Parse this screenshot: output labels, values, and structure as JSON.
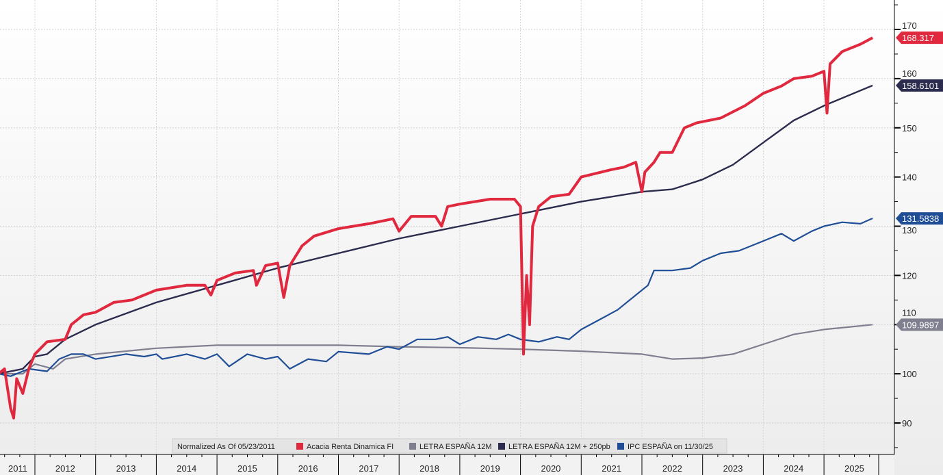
{
  "chart_data": {
    "type": "line",
    "title": "",
    "legend_header": "Normalized As Of 05/23/2011",
    "legend_position": "bottom-center",
    "ylim": [
      85,
      175
    ],
    "yticks": [
      90,
      100,
      110,
      120,
      130,
      140,
      150,
      160,
      170
    ],
    "xlim": [
      2011.38,
      2026.2
    ],
    "xticks": [
      "2011",
      "2012",
      "2013",
      "2014",
      "2015",
      "2016",
      "2017",
      "2018",
      "2019",
      "2020",
      "2021",
      "2022",
      "2023",
      "2024",
      "2025"
    ],
    "grid": true,
    "series": [
      {
        "name": "LETRA ESPAÑA 12M",
        "color": "#7f7f90",
        "width": 2.2,
        "last": "109.9897",
        "x": [
          2011.4,
          2011.8,
          2012.0,
          2012.3,
          2012.5,
          2013.0,
          2014.0,
          2015.0,
          2016.0,
          2017.0,
          2018.0,
          2019.0,
          2020.0,
          2021.0,
          2022.0,
          2022.5,
          2023.0,
          2023.5,
          2024.0,
          2024.5,
          2025.0,
          2025.8
        ],
        "y": [
          100,
          100,
          102,
          101,
          103,
          104,
          105.2,
          105.8,
          105.8,
          105.8,
          105.5,
          105.3,
          105,
          104.6,
          104,
          103,
          103.2,
          104,
          106,
          108,
          109,
          110
        ]
      },
      {
        "name": "LETRA ESPAÑA 12M + 250pb",
        "color": "#2c2c4e",
        "width": 2.4,
        "last": "158.6101",
        "x": [
          2011.4,
          2011.8,
          2012.0,
          2012.2,
          2012.5,
          2013.0,
          2014.0,
          2015.0,
          2016.0,
          2017.0,
          2018.0,
          2019.0,
          2020.0,
          2021.0,
          2022.0,
          2022.5,
          2023.0,
          2023.5,
          2024.0,
          2024.5,
          2025.0,
          2025.8
        ],
        "y": [
          100,
          101,
          103.5,
          104,
          107,
          110,
          114.5,
          118,
          121.5,
          124.5,
          127.5,
          130,
          132.5,
          135,
          137,
          137.5,
          139.5,
          142.5,
          147,
          151.5,
          154.5,
          158.6
        ]
      },
      {
        "name": "IPC ESPAÑA on 11/30/25",
        "color": "#1f4e96",
        "width": 2.2,
        "last": "131.5838",
        "x": [
          2011.4,
          2011.6,
          2011.9,
          2012.2,
          2012.4,
          2012.6,
          2012.8,
          2013.0,
          2013.5,
          2013.8,
          2014.0,
          2014.1,
          2014.5,
          2014.8,
          2015.0,
          2015.2,
          2015.5,
          2015.8,
          2016.0,
          2016.2,
          2016.5,
          2016.8,
          2017.0,
          2017.5,
          2017.8,
          2018.0,
          2018.3,
          2018.6,
          2018.8,
          2019.0,
          2019.3,
          2019.6,
          2019.8,
          2020.0,
          2020.3,
          2020.6,
          2020.8,
          2021.0,
          2021.3,
          2021.6,
          2021.9,
          2022.1,
          2022.2,
          2022.5,
          2022.8,
          2023.0,
          2023.3,
          2023.6,
          2024.0,
          2024.3,
          2024.5,
          2024.8,
          2025.0,
          2025.3,
          2025.6,
          2025.8
        ],
        "y": [
          100,
          99.5,
          101,
          100.5,
          103,
          104,
          104,
          103,
          104,
          103.5,
          104,
          103,
          104,
          103,
          104,
          101.5,
          104,
          103,
          103.5,
          101,
          103,
          102.5,
          104.5,
          104,
          105.5,
          105,
          107,
          107,
          107.5,
          106,
          107.5,
          107,
          108,
          107,
          106.5,
          107.5,
          107,
          109,
          111,
          113,
          116,
          118,
          121,
          121,
          121.5,
          123,
          124.5,
          125,
          127,
          128.5,
          127,
          129,
          130,
          130.8,
          130.5,
          131.6
        ]
      },
      {
        "name": "Acacia Renta Dinamica FI",
        "color": "#e0283e",
        "width": 4,
        "last": "168.317",
        "x": [
          2011.4,
          2011.5,
          2011.6,
          2011.65,
          2011.7,
          2011.8,
          2011.9,
          2012.0,
          2012.2,
          2012.5,
          2012.6,
          2012.8,
          2013.0,
          2013.3,
          2013.6,
          2014.0,
          2014.5,
          2014.8,
          2014.9,
          2015.0,
          2015.3,
          2015.6,
          2015.65,
          2015.8,
          2016.0,
          2016.1,
          2016.2,
          2016.4,
          2016.6,
          2017.0,
          2017.5,
          2017.9,
          2018.0,
          2018.2,
          2018.6,
          2018.7,
          2018.8,
          2019.0,
          2019.5,
          2019.9,
          2020.0,
          2020.05,
          2020.1,
          2020.15,
          2020.2,
          2020.3,
          2020.5,
          2020.8,
          2021.0,
          2021.5,
          2021.7,
          2021.9,
          2022.0,
          2022.05,
          2022.2,
          2022.3,
          2022.5,
          2022.7,
          2022.9,
          2023.3,
          2023.7,
          2024.0,
          2024.3,
          2024.5,
          2024.8,
          2025.0,
          2025.05,
          2025.1,
          2025.3,
          2025.6,
          2025.8
        ],
        "y": [
          100,
          101,
          93,
          91,
          99,
          96,
          101,
          104,
          106.5,
          107,
          110,
          112,
          112.5,
          114.5,
          115,
          117,
          118,
          118,
          116,
          119,
          120.5,
          121,
          118,
          122,
          122.5,
          115.5,
          122,
          126,
          128,
          129.5,
          130.5,
          131.5,
          129,
          132,
          132,
          130,
          134,
          134.5,
          135.5,
          135.5,
          134,
          104,
          120,
          110,
          130,
          134,
          136,
          136.5,
          140,
          141.5,
          142,
          143,
          137,
          141,
          143,
          145,
          145,
          150,
          151,
          152,
          154.5,
          157,
          158.5,
          160,
          160.5,
          161.5,
          153,
          163,
          165.5,
          167,
          168.3
        ]
      }
    ]
  }
}
